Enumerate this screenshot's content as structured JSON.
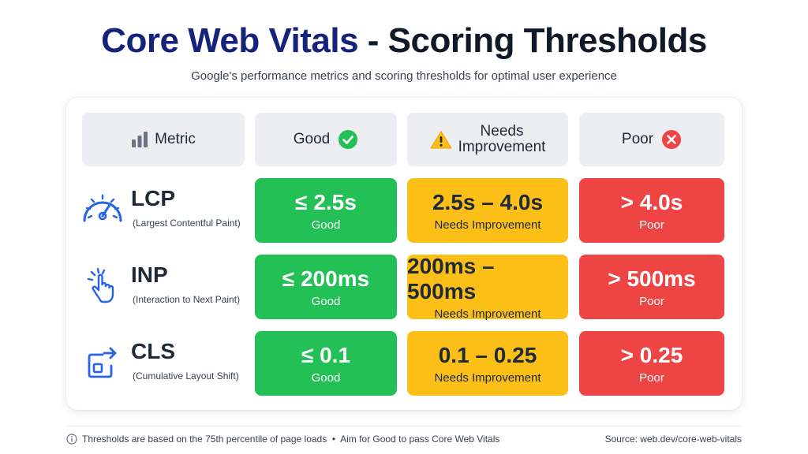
{
  "title_part1": "Core Web Vitals",
  "title_part2": " - Scoring Thresholds",
  "subtitle": "Google's performance metrics and scoring thresholds for optimal user experience",
  "headers": {
    "metric": "Metric",
    "good": "Good",
    "needs_line1": "Needs",
    "needs_line2": "Improvement",
    "poor": "Poor"
  },
  "rows": [
    {
      "abbr": "LCP",
      "full": "(Largest Contentful Paint)",
      "icon": "speedometer-icon",
      "good_value": "≤ 2.5s",
      "good_label": "Good",
      "needs_value": "2.5s – 4.0s",
      "needs_label": "Needs Improvement",
      "poor_value": "> 4.0s",
      "poor_label": "Poor"
    },
    {
      "abbr": "INP",
      "full": "(Interaction to Next Paint)",
      "icon": "tap-hand-icon",
      "good_value": "≤ 200ms",
      "good_label": "Good",
      "needs_value": "200ms – 500ms",
      "needs_label": "Needs Improvement",
      "poor_value": "> 500ms",
      "poor_label": "Poor"
    },
    {
      "abbr": "CLS",
      "full": "(Cumulative Layout Shift)",
      "icon": "layout-shift-icon",
      "good_value": "≤ 0.1",
      "good_label": "Good",
      "needs_value": "0.1 – 0.25",
      "needs_label": "Needs Improvement",
      "poor_value": "> 0.25",
      "poor_label": "Poor"
    }
  ],
  "footer": {
    "note": "Thresholds are based on the 75th percentile of page loads  •  Aim for Good to pass Core Web Vitals",
    "source": "Source: web.dev/core-web-vitals"
  },
  "colors": {
    "good": "#22c055",
    "needs": "#fbbf17",
    "poor": "#ef4444",
    "title_accent": "#16237a",
    "icon_blue": "#2563eb"
  }
}
